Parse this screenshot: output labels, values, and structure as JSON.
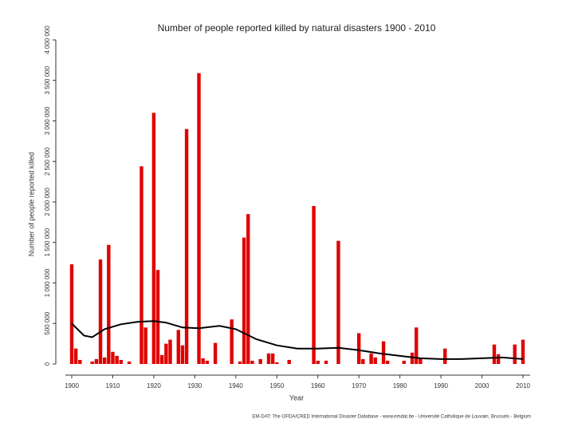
{
  "chart_data": {
    "type": "bar",
    "title": "Number of people reported killed by natural disasters 1900 - 2010",
    "xlabel": "Year",
    "ylabel": "Number of people reported killed",
    "source": "EM-DAT: The OFDA/CRED International Disaster Database - www.emdat.be - Université Catholique de Louvain, Brussels - Belgium",
    "color": "#e00000",
    "x": [
      1900,
      1901,
      1902,
      1905,
      1906,
      1907,
      1908,
      1909,
      1910,
      1911,
      1912,
      1914,
      1917,
      1918,
      1920,
      1921,
      1922,
      1923,
      1924,
      1926,
      1927,
      1928,
      1931,
      1932,
      1933,
      1935,
      1939,
      1941,
      1942,
      1943,
      1944,
      1946,
      1948,
      1949,
      1950,
      1953,
      1959,
      1960,
      1962,
      1965,
      1970,
      1971,
      1973,
      1974,
      1976,
      1977,
      1981,
      1983,
      1984,
      1985,
      1991,
      2003,
      2004,
      2008,
      2010
    ],
    "values": [
      1230000,
      190000,
      50000,
      30000,
      60000,
      1290000,
      80000,
      1470000,
      150000,
      100000,
      50000,
      30000,
      2440000,
      450000,
      3100000,
      1160000,
      110000,
      250000,
      300000,
      420000,
      230000,
      2900000,
      3590000,
      70000,
      40000,
      260000,
      550000,
      30000,
      1560000,
      1850000,
      40000,
      60000,
      130000,
      130000,
      20000,
      50000,
      1950000,
      40000,
      40000,
      1520000,
      380000,
      60000,
      130000,
      80000,
      280000,
      40000,
      40000,
      140000,
      450000,
      70000,
      190000,
      240000,
      120000,
      240000,
      300000
    ],
    "trend": {
      "color": "#000000",
      "x": [
        1900,
        1903,
        1905,
        1908,
        1912,
        1916,
        1920,
        1923,
        1927,
        1931,
        1936,
        1940,
        1945,
        1950,
        1955,
        1960,
        1965,
        1970,
        1975,
        1980,
        1985,
        1990,
        1995,
        2000,
        2005,
        2010
      ],
      "values": [
        500000,
        350000,
        330000,
        430000,
        490000,
        520000,
        530000,
        510000,
        450000,
        440000,
        470000,
        430000,
        305000,
        230000,
        190000,
        190000,
        200000,
        170000,
        130000,
        100000,
        70000,
        60000,
        60000,
        70000,
        80000,
        60000
      ]
    },
    "xlim": [
      1900,
      2010
    ],
    "xticks": [
      1900,
      1910,
      1920,
      1930,
      1940,
      1950,
      1960,
      1970,
      1980,
      1990,
      2000,
      2010
    ],
    "ylim": [
      0,
      4000000
    ],
    "yticks": [
      0,
      {
        "value": 500000,
        "label": "500 000"
      },
      {
        "value": 1000000,
        "label": "1 000 000"
      },
      {
        "value": 1500000,
        "label": "1 500 000"
      },
      {
        "value": 2000000,
        "label": "2 000 000"
      },
      {
        "value": 2500000,
        "label": "2 500 000"
      },
      {
        "value": 3000000,
        "label": "3 000 000"
      },
      {
        "value": 3500000,
        "label": "3 500 000"
      },
      {
        "value": 4000000,
        "label": "4 000 000"
      }
    ]
  }
}
